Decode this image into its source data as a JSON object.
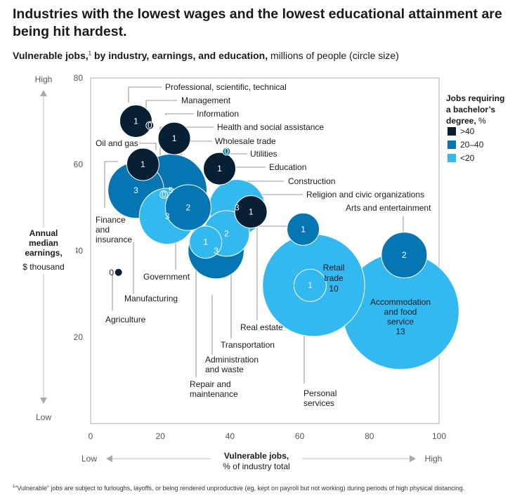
{
  "title": "Industries with the lowest wages and the lowest educational attainment are being hit hardest.",
  "subtitle": {
    "bold": "Vulnerable jobs,",
    "sup": "1",
    "bold2": " by industry, earnings, and education,",
    "rest": " millions of people (circle size)"
  },
  "footnote": {
    "sup": "1",
    "text": "“Vulnerable” jobs are subject to furloughs, layoffs, or being rendered unproductive (eg, kept on payroll but not working) during periods of high physical distancing."
  },
  "colors": {
    "dark": "#061f33",
    "mid": "#0676b3",
    "light": "#33b8f0",
    "axis": "#999999"
  },
  "chart_data": {
    "type": "scatter",
    "encoding": "bubble",
    "xlim": [
      0,
      100
    ],
    "ylim": [
      0,
      80
    ],
    "xticks": [
      0,
      20,
      40,
      60,
      80,
      100
    ],
    "yticks": [
      20,
      40,
      60,
      80
    ],
    "xlabel": {
      "title": "Vulnerable jobs,",
      "sub": "% of industry total",
      "low": "Low",
      "high": "High"
    },
    "ylabel": {
      "lines": [
        "Annual",
        "median",
        "earnings,"
      ],
      "unit": "$ thousand",
      "high": "High",
      "low": "Low"
    },
    "legend": {
      "title_lines": [
        "Jobs requiring",
        "a bachelor’s"
      ],
      "title_last": "degree,",
      "title_unit": " %",
      "placement": "right",
      "items": [
        {
          "label": ">40",
          "category": "dark"
        },
        {
          "label": "20–40",
          "category": "mid"
        },
        {
          "label": "<20",
          "category": "light"
        }
      ]
    },
    "points": [
      {
        "name": "Accommodation and food service",
        "label_lines": [
          "Accommodation",
          "and food",
          "service"
        ],
        "x": 89,
        "y": 26,
        "size": 13,
        "value_label": "13",
        "category": "light"
      },
      {
        "name": "Retail trade",
        "label_lines": [
          "Retail",
          "trade"
        ],
        "x": 64,
        "y": 32,
        "size": 10,
        "value_label": "10",
        "category": "light"
      },
      {
        "name": "Personal services",
        "label_lines": [
          "Personal",
          "services"
        ],
        "x": 63,
        "y": 32,
        "size": 1,
        "value_label": "1",
        "category": "light"
      },
      {
        "name": "Arts and entertainment",
        "label_lines": [
          "Arts and entertainment"
        ],
        "x": 90,
        "y": 39,
        "size": 2,
        "value_label": "2",
        "category": "mid"
      },
      {
        "name": "Real estate",
        "label_lines": [
          "Real estate"
        ],
        "x": 61,
        "y": 45,
        "size": 1,
        "value_label": "1",
        "category": "mid"
      },
      {
        "name": "Finance and insurance",
        "label_lines": [
          "Finance",
          "and",
          "insurance"
        ],
        "x": 13,
        "y": 54,
        "size": 3,
        "value_label": "3",
        "category": "mid"
      },
      {
        "name": "Wholesale trade",
        "label_lines": [
          "Wholesale trade"
        ],
        "x": 23,
        "y": 54,
        "size": 5,
        "value_label": "5",
        "category": "mid"
      },
      {
        "name": "Manufacturing",
        "label_lines": [
          "Manufacturing"
        ],
        "x": 22,
        "y": 48,
        "size": 3,
        "value_label": "3",
        "category": "light"
      },
      {
        "name": "Government",
        "label_lines": [
          "Government"
        ],
        "x": 28,
        "y": 50,
        "size": 2,
        "value_label": "2",
        "category": "mid"
      },
      {
        "name": "Construction",
        "label_lines": [
          "Construction"
        ],
        "x": 42,
        "y": 50,
        "size": 3,
        "value_label": "3",
        "category": "light"
      },
      {
        "name": "Administration and waste",
        "label_lines": [
          "Administration",
          "and waste"
        ],
        "x": 36,
        "y": 40,
        "size": 3,
        "value_label": "3",
        "category": "mid"
      },
      {
        "name": "Transportation",
        "label_lines": [
          "Transportation"
        ],
        "x": 39,
        "y": 44,
        "size": 2,
        "value_label": "2",
        "category": "light"
      },
      {
        "name": "Repair and maintenance",
        "label_lines": [
          "Repair and",
          "maintenance"
        ],
        "x": 33,
        "y": 42,
        "size": 1,
        "value_label": "1",
        "category": "light"
      },
      {
        "name": "Religion and civic organizations",
        "label_lines": [
          "Religion and civic organizations"
        ],
        "x": 46,
        "y": 49,
        "size": 1,
        "value_label": "1",
        "category": "dark"
      },
      {
        "name": "Education",
        "label_lines": [
          "Education"
        ],
        "x": 37,
        "y": 59,
        "size": 1,
        "value_label": "1",
        "category": "dark"
      },
      {
        "name": "Utilities",
        "label_lines": [
          "Utilities"
        ],
        "x": 39,
        "y": 63,
        "size": 0,
        "value_label": "0",
        "category": "mid"
      },
      {
        "name": "Health and social assistance",
        "label_lines": [
          "Health and social assistance"
        ],
        "x": 21,
        "y": 53,
        "size": 0,
        "value_label": "0",
        "category": "light"
      },
      {
        "name": "Oil and gas",
        "label_lines": [
          "Oil and gas"
        ],
        "x": 15,
        "y": 60,
        "size": 1,
        "value_label": "1",
        "category": "dark"
      },
      {
        "name": "Information",
        "label_lines": [
          "Information"
        ],
        "x": 24,
        "y": 66,
        "size": 1,
        "value_label": "1",
        "category": "dark"
      },
      {
        "name": "Management",
        "label_lines": [
          "Management"
        ],
        "x": 17,
        "y": 69,
        "size": 0,
        "value_label": "0",
        "category": "dark"
      },
      {
        "name": "Professional, scientific, technical",
        "label_lines": [
          "Professional, scientific, technical"
        ],
        "x": 13,
        "y": 70,
        "size": 1,
        "value_label": "1",
        "category": "dark"
      },
      {
        "name": "Agriculture",
        "label_lines": [
          "Agriculture"
        ],
        "x": 8,
        "y": 35,
        "size": 0,
        "value_label": "0",
        "category": "dark"
      }
    ]
  }
}
